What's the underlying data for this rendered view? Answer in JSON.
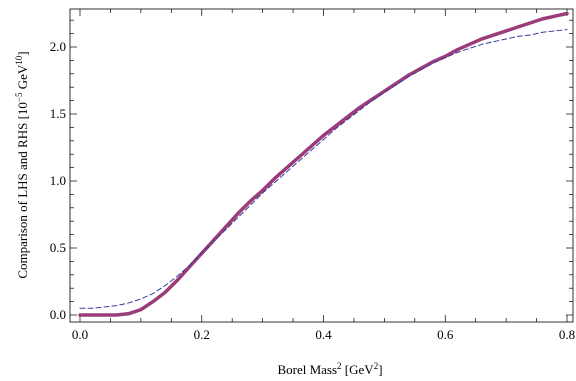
{
  "chart_data": {
    "type": "line",
    "title": "",
    "xlabel": {
      "text": "Borel Mass",
      "sup1": "2",
      "unit_open": " [GeV",
      "sup2": "2",
      "unit_close": "]"
    },
    "ylabel": {
      "text": "Comparison of LHS and RHS [10",
      "sup1": "−5",
      "mid": " GeV",
      "sup2": "10",
      "close": "]"
    },
    "xlim": [
      0,
      0.8
    ],
    "ylim": [
      0,
      2.25
    ],
    "x_ticks": [
      "0.0",
      "0.2",
      "0.4",
      "0.6",
      "0.8"
    ],
    "y_ticks": [
      "0.0",
      "0.5",
      "1.0",
      "1.5",
      "2.0"
    ],
    "grid": false,
    "series": [
      {
        "style": "solid",
        "color": "#9b3b7a",
        "x": [
          0,
          0.02,
          0.04,
          0.06,
          0.08,
          0.1,
          0.12,
          0.14,
          0.16,
          0.18,
          0.2,
          0.22,
          0.24,
          0.26,
          0.28,
          0.3,
          0.32,
          0.34,
          0.36,
          0.38,
          0.4,
          0.42,
          0.44,
          0.46,
          0.48,
          0.5,
          0.52,
          0.54,
          0.56,
          0.58,
          0.6,
          0.62,
          0.64,
          0.66,
          0.68,
          0.7,
          0.72,
          0.74,
          0.76,
          0.78,
          0.8
        ],
        "y": [
          0.0,
          0.0,
          0.0,
          0.0,
          0.01,
          0.04,
          0.1,
          0.17,
          0.26,
          0.36,
          0.46,
          0.56,
          0.66,
          0.76,
          0.85,
          0.93,
          1.02,
          1.1,
          1.18,
          1.26,
          1.34,
          1.41,
          1.48,
          1.55,
          1.61,
          1.67,
          1.73,
          1.79,
          1.84,
          1.89,
          1.93,
          1.98,
          2.02,
          2.06,
          2.09,
          2.12,
          2.15,
          2.18,
          2.21,
          2.23,
          2.25
        ]
      },
      {
        "style": "dashed",
        "color": "#3a3a9a",
        "x": [
          0,
          0.02,
          0.04,
          0.06,
          0.08,
          0.1,
          0.12,
          0.14,
          0.16,
          0.18,
          0.2,
          0.22,
          0.24,
          0.26,
          0.28,
          0.3,
          0.32,
          0.34,
          0.36,
          0.38,
          0.4,
          0.42,
          0.44,
          0.46,
          0.48,
          0.5,
          0.52,
          0.54,
          0.56,
          0.58,
          0.6,
          0.62,
          0.64,
          0.66,
          0.68,
          0.7,
          0.72,
          0.74,
          0.76,
          0.78,
          0.8
        ],
        "y": [
          0.05,
          0.05,
          0.06,
          0.07,
          0.09,
          0.12,
          0.16,
          0.22,
          0.29,
          0.37,
          0.46,
          0.55,
          0.64,
          0.73,
          0.82,
          0.91,
          0.99,
          1.07,
          1.15,
          1.23,
          1.31,
          1.39,
          1.46,
          1.53,
          1.6,
          1.66,
          1.72,
          1.78,
          1.83,
          1.88,
          1.92,
          1.96,
          1.99,
          2.02,
          2.04,
          2.06,
          2.08,
          2.09,
          2.11,
          2.12,
          2.13
        ]
      }
    ]
  }
}
